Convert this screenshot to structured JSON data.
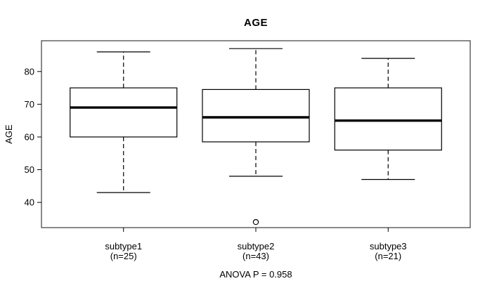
{
  "title": "AGE",
  "ylabel": "AGE",
  "footer": "ANOVA P = 0.958",
  "chart_data": {
    "type": "boxplot",
    "title": "AGE",
    "xlabel": "",
    "ylabel": "AGE",
    "ylim": [
      32.3,
      89.4
    ],
    "yticks": [
      40,
      50,
      60,
      70,
      80
    ],
    "grid": false,
    "legend": "none",
    "annotation": "ANOVA P = 0.958",
    "groups": [
      {
        "label": "subtype1",
        "sublabel": "(n=25)",
        "n": 25,
        "whisker_low": 43,
        "q1": 60,
        "median": 69,
        "q3": 75,
        "whisker_high": 86,
        "outliers": []
      },
      {
        "label": "subtype2",
        "sublabel": "(n=43)",
        "n": 43,
        "whisker_low": 48,
        "q1": 58.5,
        "median": 66,
        "q3": 74.5,
        "whisker_high": 87,
        "outliers": [
          34
        ]
      },
      {
        "label": "subtype3",
        "sublabel": "(n=21)",
        "n": 21,
        "whisker_low": 47,
        "q1": 56,
        "median": 65,
        "q3": 75,
        "whisker_high": 84,
        "outliers": []
      }
    ],
    "colors": {
      "line": "#000000",
      "box_fill": "#ffffff",
      "frame": "#3c3c3c",
      "background": "#ffffff"
    }
  }
}
